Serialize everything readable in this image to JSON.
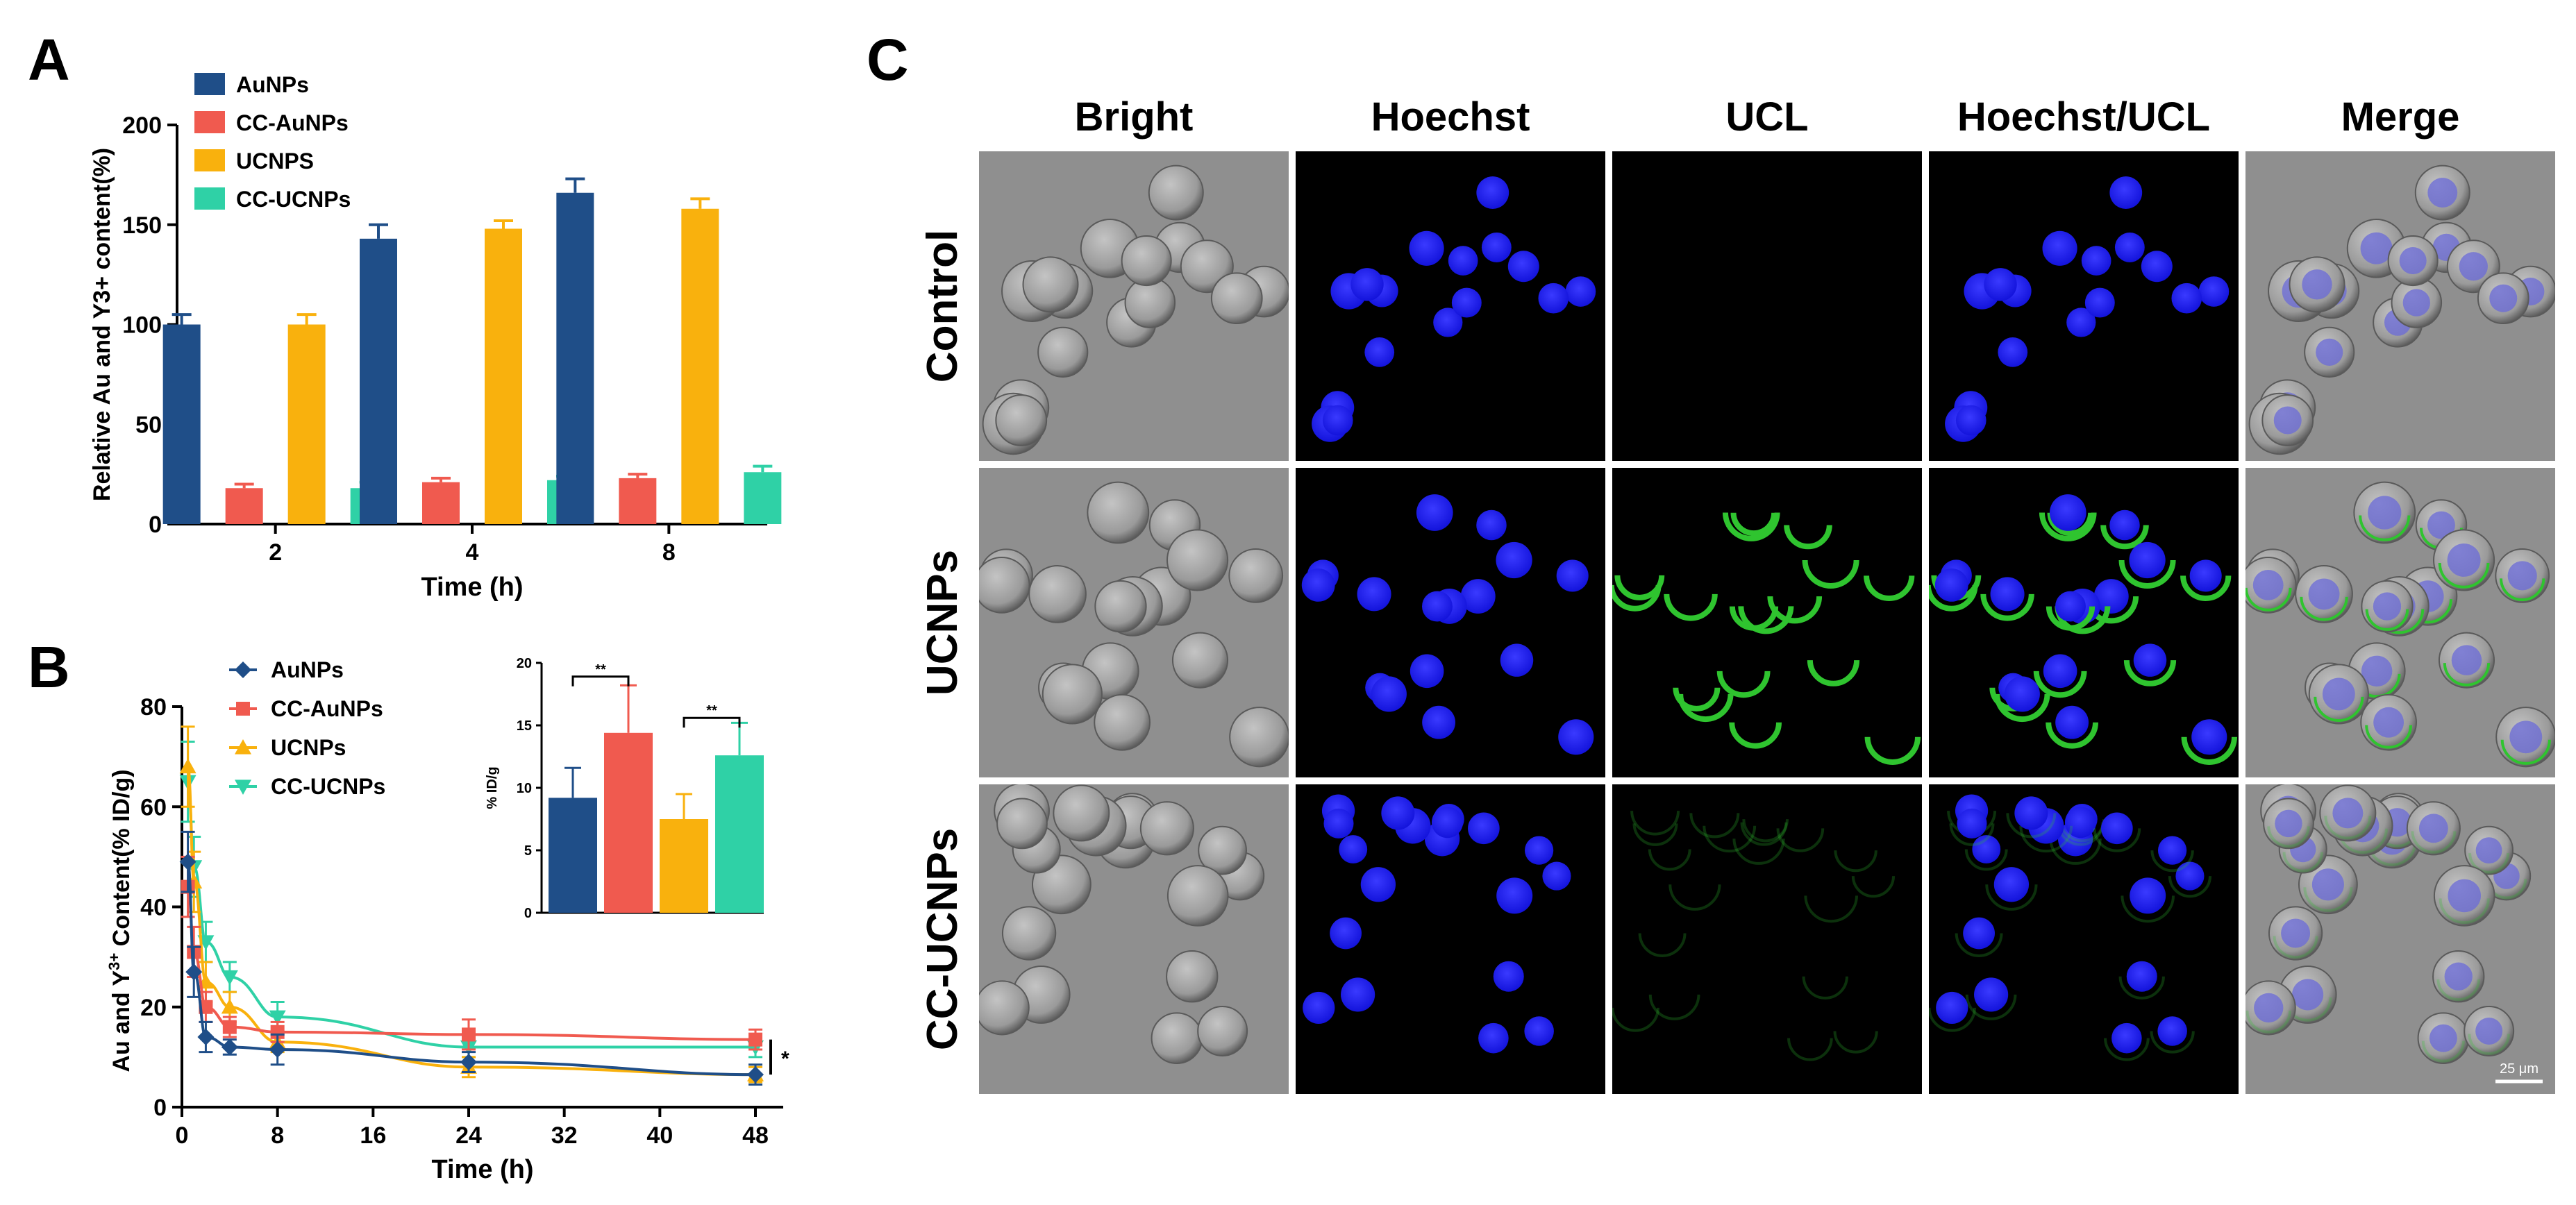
{
  "colors": {
    "auNPs": "#1f4e88",
    "ccAuNPs": "#f05a4f",
    "ucnps": "#f9b10d",
    "ccUcnps": "#2fd1a6",
    "hoechst": "#1d1df2",
    "ucl": "#2fc42f",
    "bright_bg": "#8f8f8f",
    "dark_bg": "#000000"
  },
  "panels": {
    "a": {
      "letter": "A"
    },
    "b": {
      "letter": "B"
    },
    "c": {
      "letter": "C"
    }
  },
  "chart_data": [
    {
      "id": "A",
      "type": "bar",
      "categories": [
        "2",
        "4",
        "8"
      ],
      "series": [
        {
          "name": "AuNPs",
          "values": [
            100,
            143,
            166
          ],
          "errors": [
            5,
            7,
            7
          ]
        },
        {
          "name": "CC-AuNPs",
          "values": [
            18,
            21,
            23
          ],
          "errors": [
            2,
            2,
            2
          ]
        },
        {
          "name": "UCNPS",
          "values": [
            100,
            148,
            158
          ],
          "errors": [
            5,
            4,
            5
          ]
        },
        {
          "name": "CC-UCNPs",
          "values": [
            18,
            22,
            26
          ],
          "errors": [
            3,
            2,
            3
          ]
        }
      ],
      "xlabel": "Time (h)",
      "ylabel": "Relative Au and Y3+ content(%)",
      "ylim": [
        0,
        200
      ],
      "yticks": [
        "0",
        "50",
        "100",
        "150",
        "200"
      ],
      "legend": "top-left"
    },
    {
      "id": "B",
      "type": "line",
      "x": [
        0.5,
        1,
        2,
        4,
        8,
        24,
        48
      ],
      "series": [
        {
          "name": "AuNPs",
          "values": [
            49,
            27,
            14,
            12,
            11.5,
            9,
            6.5
          ],
          "errors": [
            6,
            5,
            3,
            1.5,
            3,
            2,
            2
          ],
          "marker": "diamond"
        },
        {
          "name": "CC-AuNPs",
          "values": [
            44,
            31,
            20,
            16,
            15,
            14.5,
            13.5
          ],
          "errors": [
            6,
            5,
            3,
            2,
            2,
            3,
            2
          ],
          "marker": "square"
        },
        {
          "name": "UCNPs",
          "values": [
            68,
            45,
            25,
            20,
            13,
            8,
            6.5
          ],
          "errors": [
            8,
            6,
            4,
            3,
            2,
            2,
            1.5
          ],
          "marker": "triangle-up"
        },
        {
          "name": "CC-UCNPs",
          "values": [
            65,
            48,
            33,
            26,
            18,
            12,
            12
          ],
          "errors": [
            8,
            6,
            4,
            3,
            3,
            2,
            2
          ],
          "marker": "triangle-down"
        }
      ],
      "xlabel": "Time (h)",
      "ylabel_main": "Au and Y",
      "ylabel_sup": "3+",
      "ylabel_rest": " Content(% ID/g)",
      "xlim": [
        0,
        48
      ],
      "ylim": [
        0,
        80
      ],
      "xticks": [
        "0",
        "8",
        "16",
        "24",
        "32",
        "40",
        "48"
      ],
      "yticks": [
        "0",
        "20",
        "40",
        "60",
        "80"
      ],
      "legend": "top-center",
      "significance": "*",
      "inset": {
        "type": "bar",
        "series": [
          {
            "name": "AuNPs",
            "value": 9.2,
            "error": 2.4
          },
          {
            "name": "CC-AuNPs",
            "value": 14.4,
            "error": 3.8
          },
          {
            "name": "UCNPs",
            "value": 7.5,
            "error": 2.0
          },
          {
            "name": "CC-UCNPs",
            "value": 12.6,
            "error": 2.6
          }
        ],
        "ylabel": "% ID/g",
        "ylim": [
          0,
          20
        ],
        "yticks": [
          "0",
          "5",
          "10",
          "15",
          "20"
        ],
        "significance": [
          "**",
          "**"
        ]
      }
    }
  ],
  "microscopy": {
    "columns": [
      "Bright",
      "Hoechst",
      "UCL",
      "Hoechst/UCL",
      "Merge"
    ],
    "rows": [
      "Control",
      "UCNPs",
      "CC-UCNPs"
    ],
    "scale_bar_label": "25 μm"
  }
}
